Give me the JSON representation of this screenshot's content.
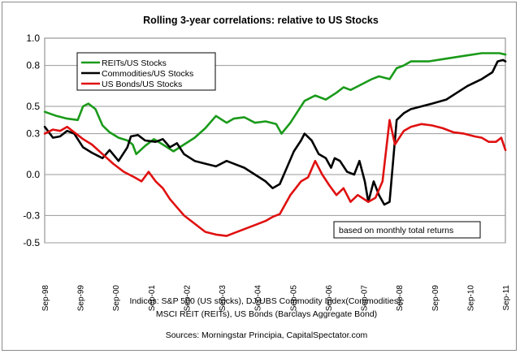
{
  "chart_data": {
    "type": "line",
    "title": "Rolling 3-year correlations: relative to US Stocks",
    "xlabel": "",
    "ylabel": "",
    "ylim": [
      -0.5,
      1.0
    ],
    "yticks": [
      1.0,
      0.8,
      0.5,
      0.3,
      0.0,
      -0.3,
      -0.5
    ],
    "ytick_labels": [
      "1.0",
      "0.8",
      "0.5",
      "0.3",
      "0.0",
      "-0.3",
      "-0.5"
    ],
    "xlim": [
      1998.667,
      2011.667
    ],
    "xticks": [
      "Sep-98",
      "Sep-99",
      "Sep-00",
      "Sep-01",
      "Sep-02",
      "Sep-03",
      "Sep-04",
      "Sep-05",
      "Sep-06",
      "Sep-07",
      "Sep-08",
      "Sep-09",
      "Sep-10",
      "Sep-11"
    ],
    "grid": {
      "horizontal": true,
      "vertical": false
    },
    "legend_position": "top-left",
    "series": [
      {
        "name": "REITs/US Stocks",
        "color": "#1a9a1a",
        "x": [
          1998.67,
          1999.0,
          1999.3,
          1999.6,
          1999.75,
          1999.9,
          2000.1,
          2000.3,
          2000.5,
          2000.75,
          2001.0,
          2001.15,
          2001.25,
          2001.5,
          2001.75,
          2002.0,
          2002.3,
          2002.6,
          2002.9,
          2003.2,
          2003.5,
          2003.8,
          2004.0,
          2004.3,
          2004.6,
          2004.9,
          2005.2,
          2005.35,
          2005.6,
          2005.8,
          2006.0,
          2006.3,
          2006.6,
          2006.9,
          2007.1,
          2007.3,
          2007.6,
          2007.9,
          2008.1,
          2008.4,
          2008.6,
          2008.8,
          2009.0,
          2009.5,
          2010.0,
          2010.5,
          2011.0,
          2011.5,
          2011.67
        ],
        "values": [
          0.46,
          0.43,
          0.41,
          0.4,
          0.5,
          0.52,
          0.48,
          0.36,
          0.31,
          0.27,
          0.25,
          0.22,
          0.15,
          0.21,
          0.26,
          0.22,
          0.17,
          0.22,
          0.27,
          0.34,
          0.43,
          0.38,
          0.41,
          0.42,
          0.38,
          0.39,
          0.37,
          0.3,
          0.38,
          0.46,
          0.54,
          0.58,
          0.55,
          0.6,
          0.64,
          0.62,
          0.66,
          0.7,
          0.72,
          0.7,
          0.78,
          0.8,
          0.83,
          0.83,
          0.85,
          0.87,
          0.89,
          0.89,
          0.88
        ]
      },
      {
        "name": "Commodities/US Stocks",
        "color": "#000000",
        "x": [
          1998.67,
          1998.9,
          1999.1,
          1999.3,
          1999.5,
          1999.75,
          2000.0,
          2000.3,
          2000.5,
          2000.75,
          2001.0,
          2001.1,
          2001.3,
          2001.5,
          2001.8,
          2002.0,
          2002.2,
          2002.4,
          2002.6,
          2002.9,
          2003.2,
          2003.5,
          2003.8,
          2004.0,
          2004.3,
          2004.6,
          2004.9,
          2005.1,
          2005.3,
          2005.5,
          2005.7,
          2005.9,
          2006.0,
          2006.2,
          2006.4,
          2006.6,
          2006.75,
          2006.85,
          2007.0,
          2007.2,
          2007.4,
          2007.55,
          2007.7,
          2007.8,
          2007.95,
          2008.1,
          2008.25,
          2008.4,
          2008.6,
          2008.8,
          2009.0,
          2009.3,
          2009.6,
          2010.0,
          2010.3,
          2010.6,
          2011.0,
          2011.3,
          2011.45,
          2011.6,
          2011.67
        ],
        "values": [
          0.35,
          0.27,
          0.28,
          0.32,
          0.3,
          0.2,
          0.16,
          0.12,
          0.18,
          0.1,
          0.2,
          0.28,
          0.29,
          0.25,
          0.24,
          0.26,
          0.2,
          0.23,
          0.15,
          0.1,
          0.08,
          0.06,
          0.1,
          0.08,
          0.05,
          0.0,
          -0.05,
          -0.1,
          -0.07,
          0.05,
          0.17,
          0.25,
          0.3,
          0.25,
          0.15,
          0.12,
          0.05,
          0.12,
          0.1,
          0.02,
          0.0,
          0.1,
          -0.05,
          -0.2,
          -0.05,
          -0.15,
          -0.22,
          -0.2,
          0.4,
          0.45,
          0.48,
          0.5,
          0.52,
          0.55,
          0.6,
          0.65,
          0.7,
          0.75,
          0.83,
          0.84,
          0.83
        ]
      },
      {
        "name": "US Bonds/US Stocks",
        "color": "#e01010",
        "x": [
          1998.67,
          1998.9,
          1999.1,
          1999.3,
          1999.5,
          1999.75,
          2000.0,
          2000.3,
          2000.6,
          2000.9,
          2001.2,
          2001.4,
          2001.6,
          2001.8,
          2002.0,
          2002.2,
          2002.4,
          2002.6,
          2002.9,
          2003.2,
          2003.5,
          2003.8,
          2004.0,
          2004.3,
          2004.6,
          2004.9,
          2005.1,
          2005.3,
          2005.6,
          2005.9,
          2006.1,
          2006.3,
          2006.5,
          2006.7,
          2006.9,
          2007.1,
          2007.3,
          2007.5,
          2007.8,
          2008.0,
          2008.2,
          2008.4,
          2008.55,
          2008.65,
          2008.8,
          2009.0,
          2009.3,
          2009.6,
          2009.9,
          2010.2,
          2010.5,
          2010.8,
          2011.0,
          2011.2,
          2011.4,
          2011.55,
          2011.67
        ],
        "values": [
          0.3,
          0.33,
          0.32,
          0.35,
          0.31,
          0.26,
          0.22,
          0.15,
          0.08,
          0.02,
          -0.02,
          -0.05,
          0.02,
          -0.05,
          -0.1,
          -0.18,
          -0.24,
          -0.3,
          -0.36,
          -0.42,
          -0.44,
          -0.45,
          -0.43,
          -0.4,
          -0.37,
          -0.34,
          -0.31,
          -0.29,
          -0.15,
          -0.05,
          -0.02,
          0.1,
          0.0,
          -0.08,
          -0.15,
          -0.1,
          -0.2,
          -0.15,
          -0.2,
          -0.17,
          -0.05,
          0.4,
          0.22,
          0.26,
          0.32,
          0.35,
          0.37,
          0.36,
          0.34,
          0.31,
          0.3,
          0.28,
          0.27,
          0.24,
          0.24,
          0.27,
          0.18
        ]
      }
    ],
    "annotations": [
      "based on monthly total returns"
    ],
    "footnote": [
      "Indices: S&P 500 (US stocks), DJ-UBS Commodity Index(Commodities),",
      "MSCI REIT (REITs), US Bonds (Barclays Aggregate Bond)",
      "Sources: Morningstar Principia, CapitalSpectator.com"
    ]
  }
}
